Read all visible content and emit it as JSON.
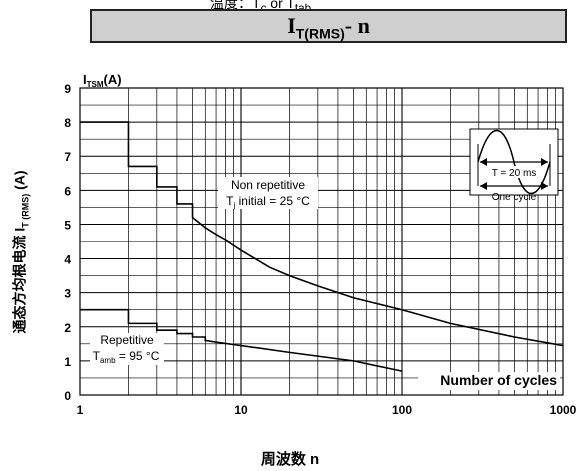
{
  "header": {
    "top_text": "温度：T",
    "top_sub": "c",
    "top_text2": " or T",
    "top_sub2": "tab"
  },
  "chart_data": {
    "type": "line",
    "title": {
      "main": "I",
      "sub": "T(RMS)",
      "suffix": "- n"
    },
    "ylabel": {
      "main": "通态方均根电流 I",
      "sub": "T (RMS)",
      "suffix": " (A)"
    },
    "xlabel": "周波数 n",
    "inner_y_title": {
      "main": "I",
      "sub": "TSM",
      "suffix": "(A)"
    },
    "inner_x_label": "Number of cycles",
    "x_scale": "log",
    "xlim": [
      1,
      1000
    ],
    "ylim": [
      0,
      9
    ],
    "x_ticks": [
      {
        "value": 1,
        "label": "1"
      },
      {
        "value": 10,
        "label": "10"
      },
      {
        "value": 100,
        "label": "100"
      },
      {
        "value": 1000,
        "label": "1000"
      }
    ],
    "y_ticks": [
      "0",
      "1",
      "2",
      "3",
      "4",
      "5",
      "6",
      "7",
      "8",
      "9"
    ],
    "grid": true,
    "series": [
      {
        "name": "Non repetitive",
        "stepped_until": 5,
        "points": [
          [
            1,
            8.0
          ],
          [
            2,
            6.7
          ],
          [
            3,
            6.1
          ],
          [
            4,
            5.6
          ],
          [
            5,
            5.2
          ],
          [
            6,
            4.9
          ],
          [
            7,
            4.7
          ],
          [
            8,
            4.55
          ],
          [
            10,
            4.25
          ],
          [
            15,
            3.75
          ],
          [
            20,
            3.5
          ],
          [
            30,
            3.2
          ],
          [
            50,
            2.85
          ],
          [
            100,
            2.5
          ],
          [
            200,
            2.1
          ],
          [
            500,
            1.7
          ],
          [
            1000,
            1.45
          ]
        ]
      },
      {
        "name": "Repetitive",
        "stepped_until": 6,
        "points": [
          [
            1,
            2.5
          ],
          [
            2,
            2.1
          ],
          [
            3,
            1.9
          ],
          [
            4,
            1.8
          ],
          [
            5,
            1.7
          ],
          [
            6,
            1.6
          ],
          [
            7,
            1.55
          ],
          [
            10,
            1.45
          ],
          [
            20,
            1.25
          ],
          [
            50,
            1.0
          ],
          [
            100,
            0.7
          ]
        ]
      }
    ],
    "annotations": {
      "non_repetitive": {
        "line1": "Non repetitive",
        "line2_a": "T",
        "line2_sub": "j",
        "line2_b": " initial = 25 °C"
      },
      "repetitive": {
        "line1": "Repetitive",
        "line2_a": "T",
        "line2_sub": "amb",
        "line2_b": " = 95 °C"
      },
      "inset": {
        "period": "T = 20 ms",
        "one_cycle": "One cycle"
      }
    }
  }
}
